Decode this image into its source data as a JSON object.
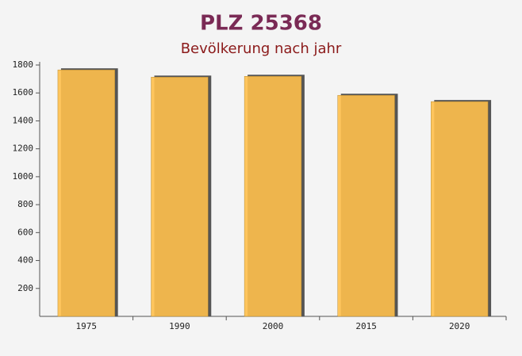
{
  "chart_data": {
    "type": "bar",
    "title": "PLZ 25368",
    "subtitle": "Bevölkerung nach jahr",
    "categories": [
      "1975",
      "1990",
      "2000",
      "2015",
      "2020"
    ],
    "values": [
      1765,
      1713,
      1719,
      1583,
      1538
    ],
    "color": "#ffc04d",
    "ylim": [
      0,
      1800
    ],
    "yticks": [
      200,
      400,
      600,
      800,
      1000,
      1200,
      1400,
      1600,
      1800
    ]
  }
}
